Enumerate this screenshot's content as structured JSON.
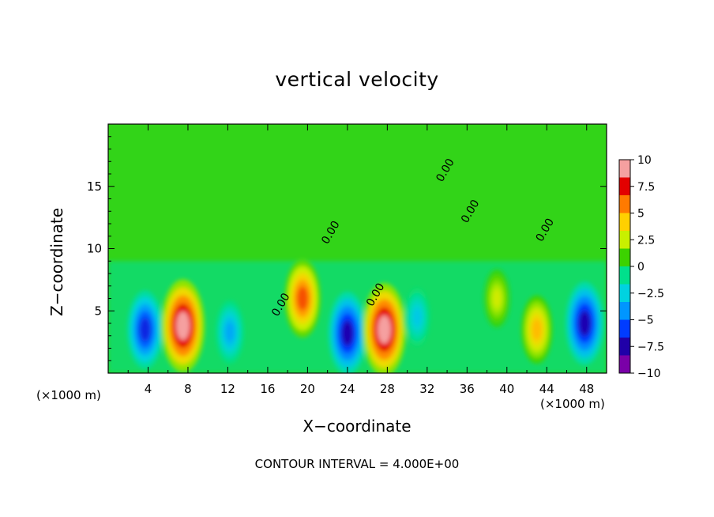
{
  "chart_data": {
    "type": "heatmap",
    "title": "vertical velocity",
    "xlabel": "X−coordinate",
    "ylabel": "Z−coordinate",
    "x_unit": "(×1000 m)",
    "y_unit": "(×1000 m)",
    "x_range": [
      0,
      50
    ],
    "y_range": [
      0,
      20
    ],
    "x_ticks": [
      "4",
      "8",
      "12",
      "16",
      "20",
      "24",
      "28",
      "32",
      "36",
      "40",
      "44",
      "48"
    ],
    "y_ticks": [
      "5",
      "10",
      "15"
    ],
    "footer": "CONTOUR INTERVAL = 4.000E+00",
    "contour_label": "0.00",
    "colorbar": {
      "min": -10,
      "max": 10,
      "labels": [
        "10",
        "7.5",
        "5",
        "2.5",
        "0",
        "−2.5",
        "−5",
        "−7.5",
        "−10"
      ],
      "colors": [
        "#f5a0a0",
        "#e30000",
        "#ff7a00",
        "#ffd000",
        "#c8f000",
        "#3cd200",
        "#00e08c",
        "#00d2e0",
        "#0096ff",
        "#003cff",
        "#2000a8",
        "#7a00a8"
      ]
    },
    "features": [
      {
        "x": 3.7,
        "z": 3.5,
        "value": -7
      },
      {
        "x": 7.5,
        "z": 3.8,
        "value": 10
      },
      {
        "x": 12.2,
        "z": 3.3,
        "value": -4
      },
      {
        "x": 19.5,
        "z": 6.0,
        "value": 7
      },
      {
        "x": 24.0,
        "z": 3.2,
        "value": -8
      },
      {
        "x": 27.7,
        "z": 3.5,
        "value": 10
      },
      {
        "x": 31.0,
        "z": 4.5,
        "value": -3
      },
      {
        "x": 39.0,
        "z": 6.0,
        "value": 3
      },
      {
        "x": 43.0,
        "z": 3.5,
        "value": 5
      },
      {
        "x": 47.8,
        "z": 4.0,
        "value": -8
      }
    ]
  }
}
